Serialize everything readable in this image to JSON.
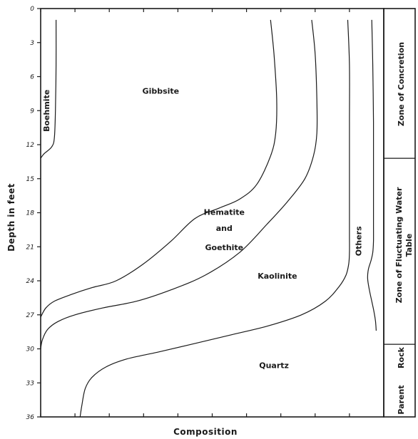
{
  "chart_data": {
    "type": "area",
    "xlabel": "Composition",
    "ylabel": "Depth in feet",
    "ylim": [
      0,
      36
    ],
    "y_ticks": [
      "0",
      "3",
      "6",
      "9",
      "12",
      "15",
      "18",
      "21",
      "24",
      "27",
      "30",
      "33",
      "36"
    ],
    "y_tick_values": [
      0,
      3,
      6,
      9,
      12,
      15,
      18,
      21,
      24,
      27,
      30,
      33,
      36
    ],
    "xlim": [
      0,
      100
    ],
    "x_ticks": [
      0,
      10,
      20,
      30,
      40,
      50,
      60,
      70,
      80,
      90,
      100
    ],
    "series": [
      {
        "name": "Boehmite",
        "label": "Boehmite",
        "x": [
          4.5,
          4.5,
          4.3,
          4.0,
          3.2,
          1.0,
          0
        ],
        "y": [
          1,
          5,
          9,
          11.4,
          12.2,
          12.8,
          13.2
        ]
      },
      {
        "name": "Gibbsite",
        "label": "Gibbsite",
        "x": [
          67,
          68,
          68.8,
          68.5,
          67,
          63,
          58,
          52,
          45,
          38,
          30,
          22,
          15,
          9,
          4,
          1.5,
          0
        ],
        "y": [
          1,
          4,
          8,
          11,
          13,
          15.5,
          16.8,
          17.6,
          18.5,
          20.5,
          22.5,
          24,
          24.6,
          25.2,
          25.8,
          26.4,
          27.2
        ]
      },
      {
        "name": "Hematite and Goethite",
        "label": "Hematite\nand\nGoethite",
        "x": [
          79,
          80,
          80.5,
          80.5,
          79.5,
          77,
          72,
          66,
          58,
          48,
          38,
          28,
          18,
          10,
          5,
          2,
          0.5,
          0
        ],
        "y": [
          1,
          4,
          8,
          11,
          13,
          15,
          17,
          19,
          21.5,
          23.5,
          24.8,
          25.8,
          26.4,
          27,
          27.6,
          28.3,
          29.2,
          30
        ]
      },
      {
        "name": "Kaolinite",
        "label": "Kaolinite",
        "x": [
          89.5,
          90,
          90,
          90,
          90,
          90,
          90,
          89.8,
          89,
          87,
          83,
          76,
          66,
          55,
          44,
          34,
          25,
          19,
          15,
          13,
          12,
          11.5
        ],
        "y": [
          1,
          5,
          10,
          15,
          18,
          20,
          21.5,
          22.5,
          23.5,
          24.5,
          25.8,
          27,
          28,
          28.8,
          29.6,
          30.3,
          30.9,
          31.6,
          32.5,
          33.5,
          35,
          36
        ]
      },
      {
        "name": "Quartz",
        "label": "Quartz",
        "x": [],
        "y": []
      },
      {
        "name": "Others",
        "label": "Others",
        "x": [
          96.5,
          96.8,
          97,
          97,
          97,
          97,
          97,
          96.8,
          96.3,
          95.5,
          95.3,
          95.8,
          96.5,
          97.2,
          97.6,
          97.8
        ],
        "y": [
          1,
          5,
          10,
          14,
          17,
          19,
          20.5,
          21.5,
          22.2,
          23,
          23.8,
          24.8,
          25.8,
          26.8,
          27.6,
          28.4
        ]
      }
    ],
    "annotations": [
      {
        "text": "Boehmite",
        "x": 2.5,
        "y": 9,
        "rotate": -90
      },
      {
        "text": "Gibbsite",
        "x": 35,
        "y": 7.5
      },
      {
        "text": "Hematite",
        "x": 53.5,
        "y": 18.2
      },
      {
        "text": "and",
        "x": 53.5,
        "y": 19.6
      },
      {
        "text": "Goethite",
        "x": 53.5,
        "y": 21.3
      },
      {
        "text": "Kaolinite",
        "x": 69,
        "y": 23.8
      },
      {
        "text": "Quartz",
        "x": 68,
        "y": 31.7
      },
      {
        "text": "Others",
        "x": 93.5,
        "y": 20.5,
        "rotate": -90
      }
    ],
    "zones": [
      {
        "name": "Zone of Concretion",
        "from": 0,
        "to": 13.2
      },
      {
        "name": "Zone of Fluctuating Water Table",
        "from": 13.2,
        "to": 29.6
      },
      {
        "name": "Parent Rock",
        "from": 29.6,
        "to": 36
      }
    ],
    "zone_lines": [
      "Zone of Concretion",
      "Zone of Fluctuating Water",
      "Table",
      "Parent",
      "Rock"
    ],
    "grid": false,
    "legend": "none"
  }
}
